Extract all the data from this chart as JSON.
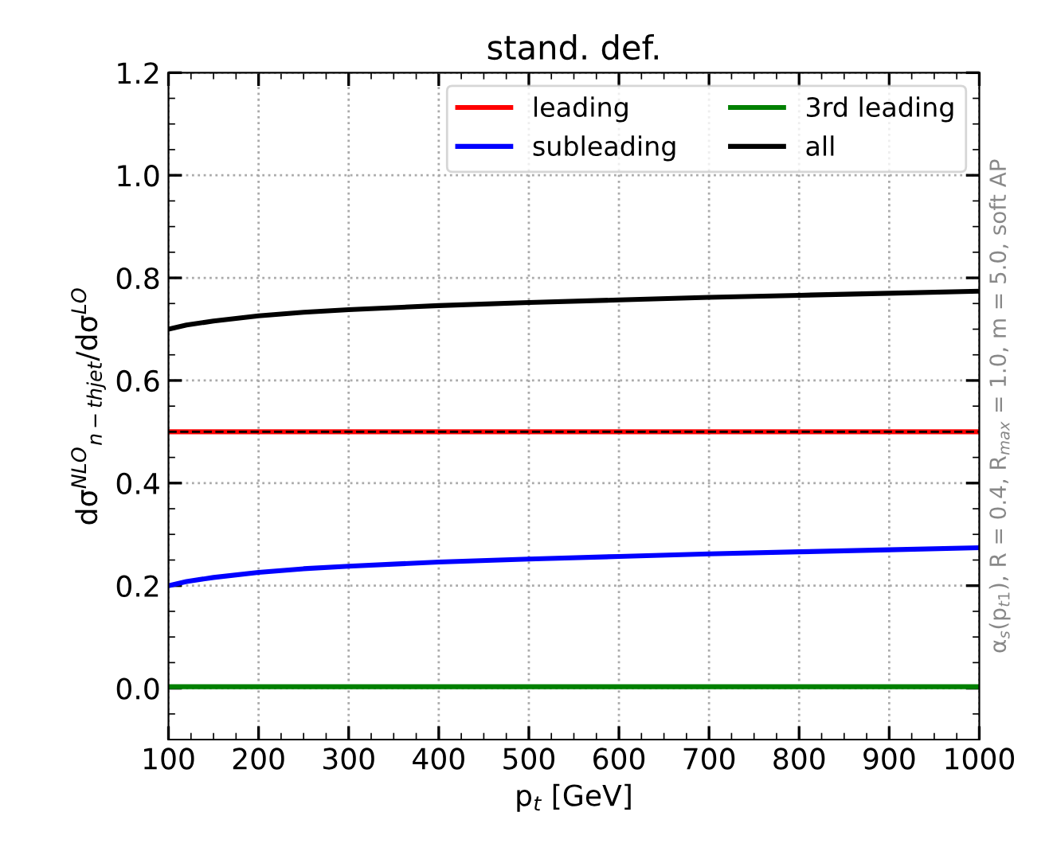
{
  "chart_data": {
    "type": "line",
    "title": "stand. def.",
    "xlabel": "p$_{t}$ [GeV]",
    "ylabel": "dσ$^{NLO}$$_{n−thjet}$/dσ$^{LO}$",
    "x": [
      100,
      120,
      150,
      200,
      250,
      300,
      400,
      500,
      600,
      700,
      800,
      900,
      1000
    ],
    "series": [
      {
        "name": "leading",
        "color": "#ff0000",
        "values": [
          0.5,
          0.5,
          0.5,
          0.5,
          0.5,
          0.5,
          0.5,
          0.5,
          0.5,
          0.5,
          0.5,
          0.5,
          0.5
        ]
      },
      {
        "name": "subleading",
        "color": "#0000ff",
        "values": [
          0.2,
          0.208,
          0.216,
          0.226,
          0.233,
          0.238,
          0.246,
          0.252,
          0.257,
          0.262,
          0.266,
          0.27,
          0.274
        ]
      },
      {
        "name": "3rd leading",
        "color": "#008000",
        "values": [
          0.003,
          0.003,
          0.003,
          0.003,
          0.003,
          0.003,
          0.003,
          0.003,
          0.003,
          0.003,
          0.003,
          0.003,
          0.003
        ]
      },
      {
        "name": "all",
        "color": "#000000",
        "values": [
          0.7,
          0.708,
          0.716,
          0.726,
          0.733,
          0.738,
          0.746,
          0.752,
          0.757,
          0.762,
          0.766,
          0.77,
          0.774
        ]
      }
    ],
    "ref_lines": [
      {
        "axis": "y",
        "value": 0.5,
        "color": "#000000",
        "line_style": "dashed"
      }
    ],
    "xlim": [
      100,
      1000
    ],
    "xticks": [
      100,
      200,
      300,
      400,
      500,
      600,
      700,
      800,
      900,
      1000
    ],
    "ylim": [
      -0.1,
      1.2
    ],
    "yticks": [
      {
        "value": 0,
        "label": "0.0"
      },
      0.2,
      0.4,
      0.6,
      0.8,
      {
        "value": 1,
        "label": "1.0"
      },
      1.2
    ],
    "grid": true,
    "legend": "top right",
    "line_style": "solid",
    "marker": "none",
    "annotations": [
      "α$_{s}$(p$_{t1}$), R = 0.4, R$_{max}$ = 1.0, m = 5.0, soft AP"
    ]
  }
}
